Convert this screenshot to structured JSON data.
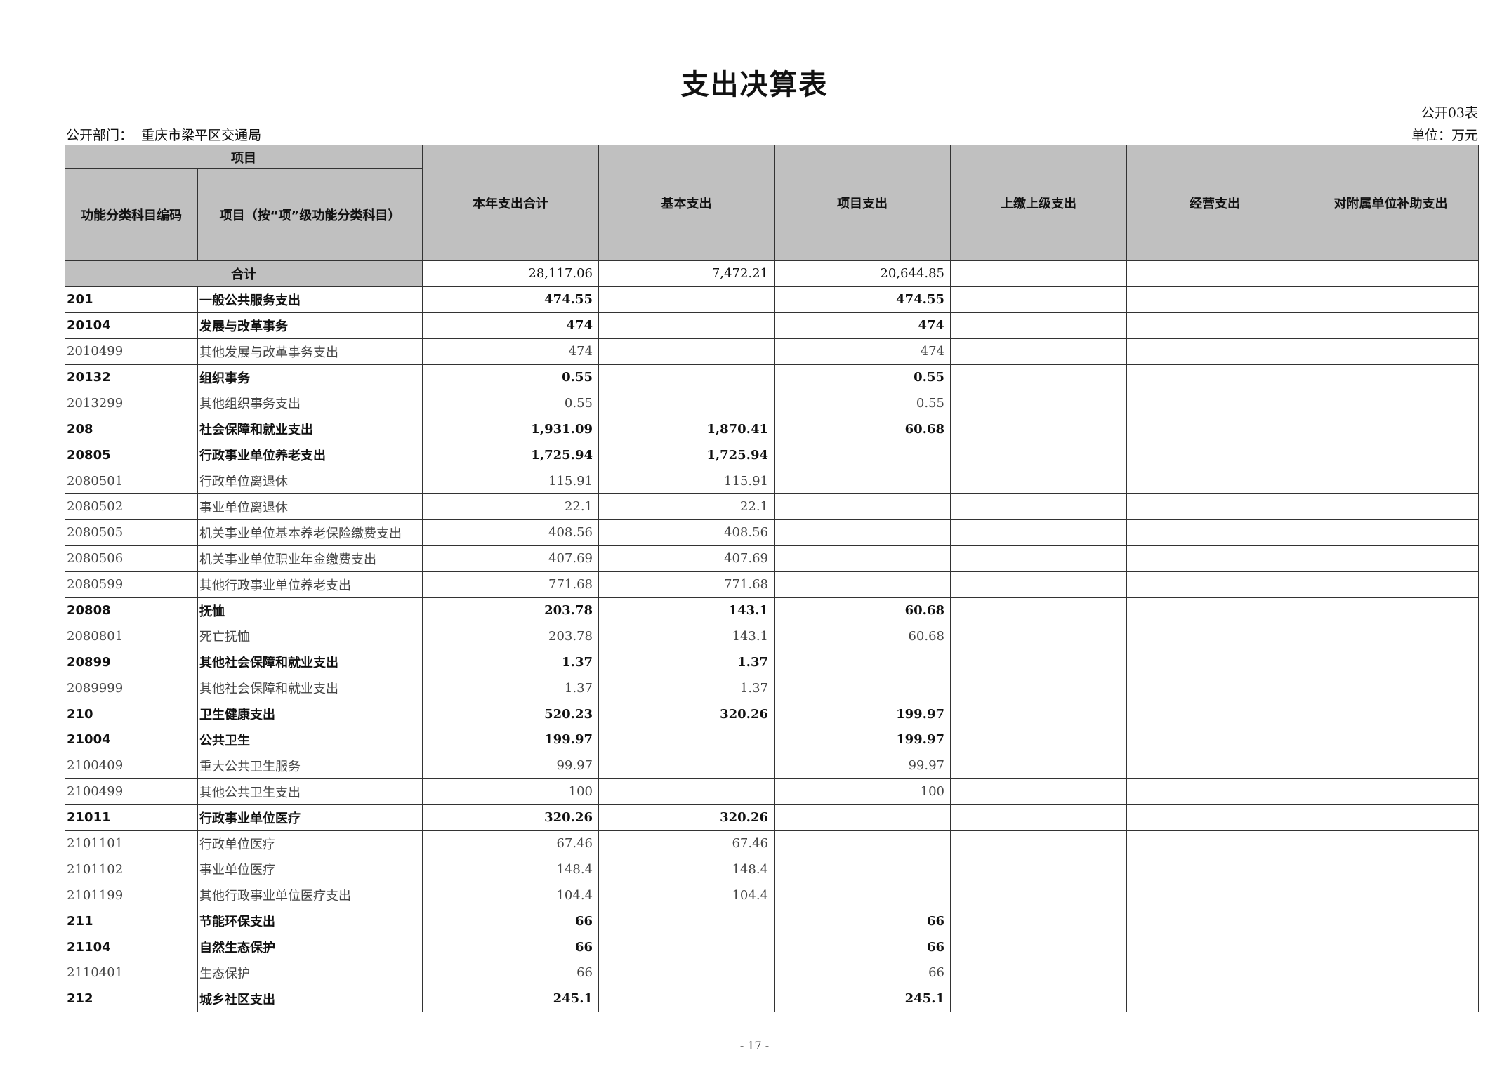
{
  "title": "支出决算表",
  "form_no": "公开03表",
  "department_label": "公开部门：",
  "department": "重庆市梁平区交通局",
  "unit": "单位：万元",
  "header": {
    "project": "项目",
    "code": "功能分类科目编码",
    "name": "项目（按“项”级功能分类科目）",
    "cols": [
      "本年支出合计",
      "基本支出",
      "项目支出",
      "上缴上级支出",
      "经营支出",
      "对附属单位补助支出"
    ]
  },
  "total": {
    "label": "合计",
    "values": [
      "28,117.06",
      "7,472.21",
      "20,644.85",
      "",
      "",
      ""
    ]
  },
  "rows": [
    {
      "code": "201",
      "name": "一般公共服务支出",
      "bold": true,
      "values": [
        "474.55",
        "",
        "474.55",
        "",
        "",
        ""
      ]
    },
    {
      "code": "20104",
      "name": "发展与改革事务",
      "bold": true,
      "values": [
        "474",
        "",
        "474",
        "",
        "",
        ""
      ]
    },
    {
      "code": "2010499",
      "name": "其他发展与改革事务支出",
      "bold": false,
      "values": [
        "474",
        "",
        "474",
        "",
        "",
        ""
      ]
    },
    {
      "code": "20132",
      "name": "组织事务",
      "bold": true,
      "values": [
        "0.55",
        "",
        "0.55",
        "",
        "",
        ""
      ]
    },
    {
      "code": "2013299",
      "name": "其他组织事务支出",
      "bold": false,
      "values": [
        "0.55",
        "",
        "0.55",
        "",
        "",
        ""
      ]
    },
    {
      "code": "208",
      "name": "社会保障和就业支出",
      "bold": true,
      "values": [
        "1,931.09",
        "1,870.41",
        "60.68",
        "",
        "",
        ""
      ]
    },
    {
      "code": "20805",
      "name": "行政事业单位养老支出",
      "bold": true,
      "values": [
        "1,725.94",
        "1,725.94",
        "",
        "",
        "",
        ""
      ]
    },
    {
      "code": "2080501",
      "name": "行政单位离退休",
      "bold": false,
      "values": [
        "115.91",
        "115.91",
        "",
        "",
        "",
        ""
      ]
    },
    {
      "code": "2080502",
      "name": "事业单位离退休",
      "bold": false,
      "values": [
        "22.1",
        "22.1",
        "",
        "",
        "",
        ""
      ]
    },
    {
      "code": "2080505",
      "name": "机关事业单位基本养老保险缴费支出",
      "bold": false,
      "values": [
        "408.56",
        "408.56",
        "",
        "",
        "",
        ""
      ]
    },
    {
      "code": "2080506",
      "name": "机关事业单位职业年金缴费支出",
      "bold": false,
      "values": [
        "407.69",
        "407.69",
        "",
        "",
        "",
        ""
      ]
    },
    {
      "code": "2080599",
      "name": "其他行政事业单位养老支出",
      "bold": false,
      "values": [
        "771.68",
        "771.68",
        "",
        "",
        "",
        ""
      ]
    },
    {
      "code": "20808",
      "name": "抚恤",
      "bold": true,
      "values": [
        "203.78",
        "143.1",
        "60.68",
        "",
        "",
        ""
      ]
    },
    {
      "code": "2080801",
      "name": "死亡抚恤",
      "bold": false,
      "values": [
        "203.78",
        "143.1",
        "60.68",
        "",
        "",
        ""
      ]
    },
    {
      "code": "20899",
      "name": "其他社会保障和就业支出",
      "bold": true,
      "values": [
        "1.37",
        "1.37",
        "",
        "",
        "",
        ""
      ]
    },
    {
      "code": "2089999",
      "name": "其他社会保障和就业支出",
      "bold": false,
      "values": [
        "1.37",
        "1.37",
        "",
        "",
        "",
        ""
      ]
    },
    {
      "code": "210",
      "name": "卫生健康支出",
      "bold": true,
      "values": [
        "520.23",
        "320.26",
        "199.97",
        "",
        "",
        ""
      ]
    },
    {
      "code": "21004",
      "name": "公共卫生",
      "bold": true,
      "values": [
        "199.97",
        "",
        "199.97",
        "",
        "",
        ""
      ]
    },
    {
      "code": "2100409",
      "name": "重大公共卫生服务",
      "bold": false,
      "values": [
        "99.97",
        "",
        "99.97",
        "",
        "",
        ""
      ]
    },
    {
      "code": "2100499",
      "name": "其他公共卫生支出",
      "bold": false,
      "values": [
        "100",
        "",
        "100",
        "",
        "",
        ""
      ]
    },
    {
      "code": "21011",
      "name": "行政事业单位医疗",
      "bold": true,
      "values": [
        "320.26",
        "320.26",
        "",
        "",
        "",
        ""
      ]
    },
    {
      "code": "2101101",
      "name": "行政单位医疗",
      "bold": false,
      "values": [
        "67.46",
        "67.46",
        "",
        "",
        "",
        ""
      ]
    },
    {
      "code": "2101102",
      "name": "事业单位医疗",
      "bold": false,
      "values": [
        "148.4",
        "148.4",
        "",
        "",
        "",
        ""
      ]
    },
    {
      "code": "2101199",
      "name": "其他行政事业单位医疗支出",
      "bold": false,
      "values": [
        "104.4",
        "104.4",
        "",
        "",
        "",
        ""
      ]
    },
    {
      "code": "211",
      "name": "节能环保支出",
      "bold": true,
      "values": [
        "66",
        "",
        "66",
        "",
        "",
        ""
      ]
    },
    {
      "code": "21104",
      "name": "自然生态保护",
      "bold": true,
      "values": [
        "66",
        "",
        "66",
        "",
        "",
        ""
      ]
    },
    {
      "code": "2110401",
      "name": "生态保护",
      "bold": false,
      "values": [
        "66",
        "",
        "66",
        "",
        "",
        ""
      ]
    },
    {
      "code": "212",
      "name": "城乡社区支出",
      "bold": true,
      "values": [
        "245.1",
        "",
        "245.1",
        "",
        "",
        ""
      ]
    }
  ],
  "page_number": "- 17 -"
}
